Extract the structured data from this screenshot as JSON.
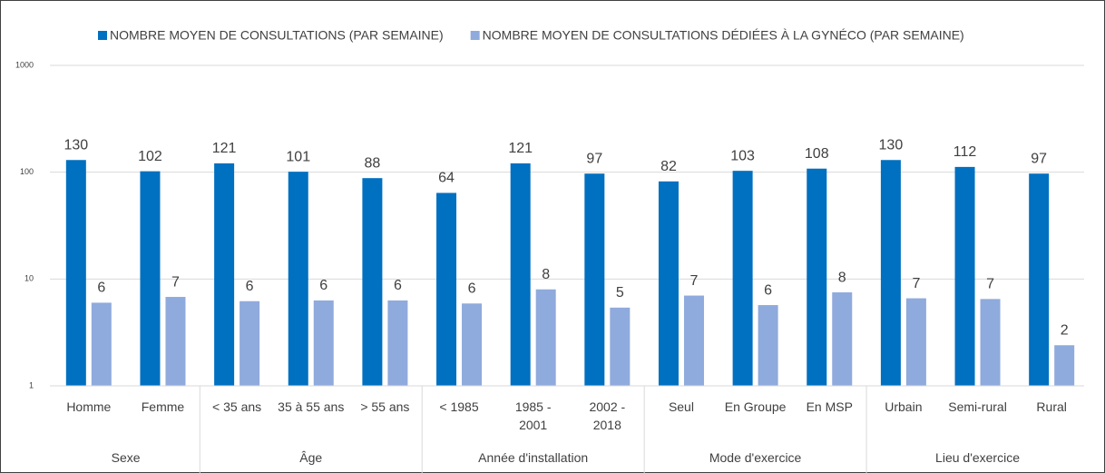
{
  "chart_data": {
    "type": "bar",
    "series": [
      {
        "name": "NOMBRE MOYEN DE CONSULTATIONS (PAR SEMAINE)",
        "color": "#0070c0",
        "values": [
          130,
          102,
          121,
          101,
          88,
          64,
          121,
          97,
          82,
          103,
          108,
          130,
          112,
          97
        ]
      },
      {
        "name": "NOMBRE MOYEN DE CONSULTATIONS  DÉDIÉES À LA GYNÉCO (PAR SEMAINE)",
        "color": "#8faadc",
        "values": [
          6.0,
          6.8,
          6.2,
          6.3,
          6.3,
          5.9,
          8.0,
          5.4,
          7.0,
          5.7,
          7.5,
          6.6,
          6.5,
          2.4
        ],
        "value_labels": [
          "6",
          "7",
          "6",
          "6",
          "6",
          "6",
          "8",
          "5",
          "7",
          "6",
          "8",
          "7",
          "7",
          "2"
        ]
      }
    ],
    "groups": [
      {
        "name": "Sexe",
        "categories": [
          "Homme",
          "Femme"
        ]
      },
      {
        "name": "Âge",
        "categories": [
          "< 35 ans",
          "35 à 55 ans",
          "> 55 ans"
        ]
      },
      {
        "name": "Année d'installation",
        "categories": [
          "<  1985",
          "1985 -\n2001",
          "2002 -\n2018"
        ]
      },
      {
        "name": "Mode d'exercice",
        "categories": [
          "Seul",
          "En Groupe",
          "En MSP"
        ]
      },
      {
        "name": "Lieu d'exercice",
        "categories": [
          "Urbain",
          "Semi-rural",
          "Rural"
        ]
      }
    ],
    "log_scale": true,
    "ylim": [
      1,
      1000
    ],
    "yticks": [
      1,
      10,
      100,
      1000
    ],
    "grid": true,
    "legend": "top"
  }
}
